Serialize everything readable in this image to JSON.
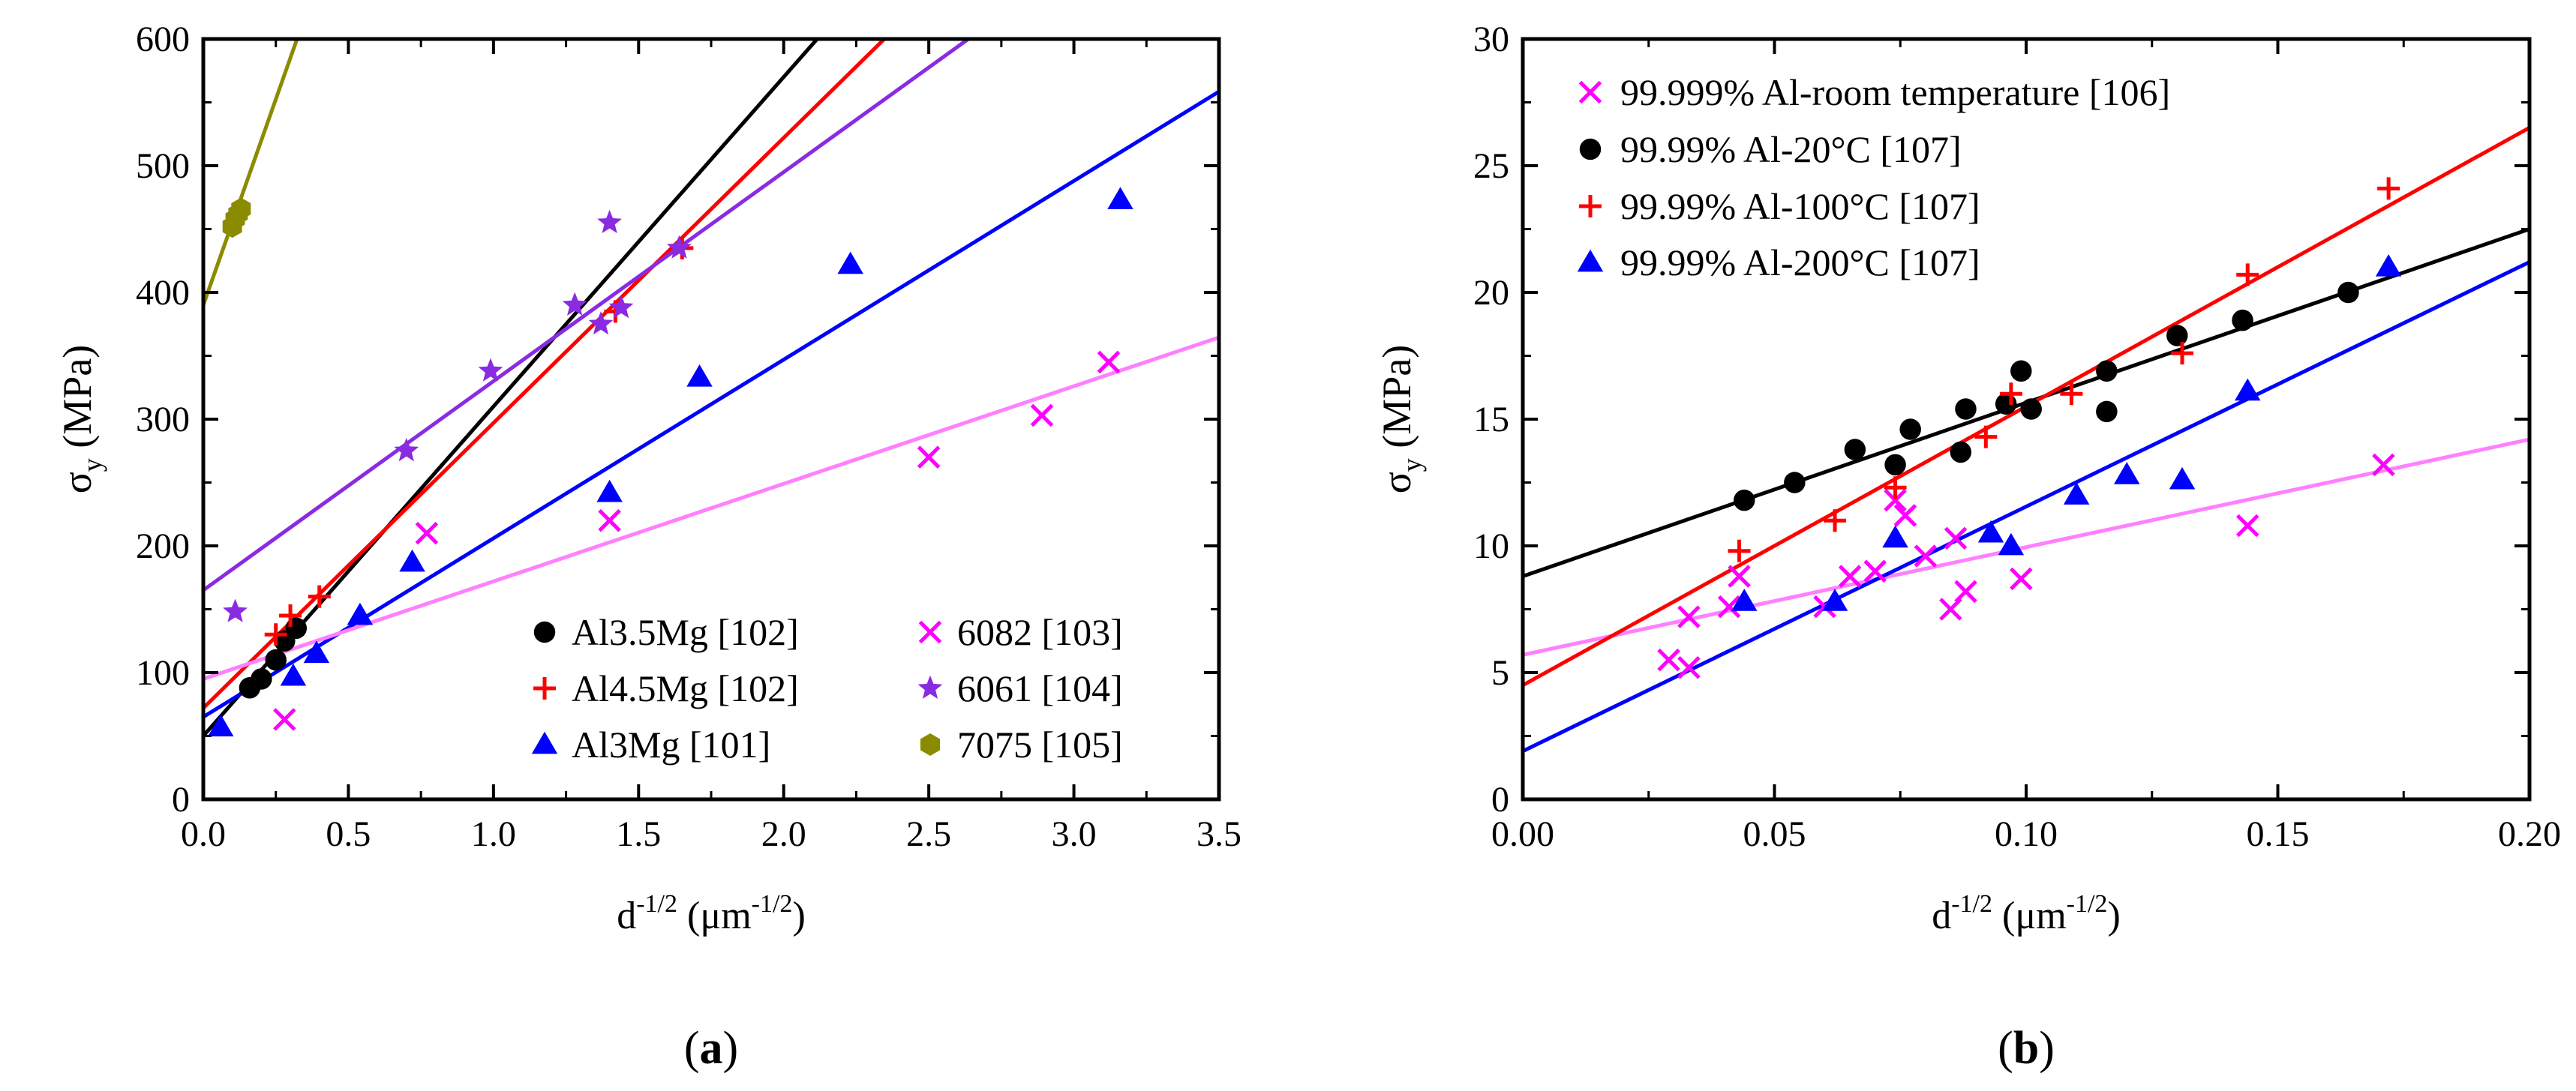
{
  "colors": {
    "black": "#000000",
    "red": "#ff0000",
    "blue": "#0000ff",
    "magenta": "#ff00ff",
    "pink_line": "#ff80ff",
    "purple": "#8a2be2",
    "purple_line": "#8a2be2",
    "olive": "#8b8b00"
  },
  "chart_data": [
    {
      "type": "scatter",
      "panel_label": "(a)",
      "xlabel": "d",
      "xlabel_sup": "-1/2",
      "xlabel_units": "(μm",
      "xlabel_units_sup": "-1/2",
      "xlabel_close": ")",
      "ylabel": "σ",
      "ylabel_sub": "y",
      "ylabel_units": "(MPa)",
      "xlim": [
        0,
        3.5
      ],
      "ylim": [
        0,
        600
      ],
      "xticks": [
        0.0,
        0.5,
        1.0,
        1.5,
        2.0,
        2.5,
        3.0,
        3.5
      ],
      "xtick_labels": [
        "0.0",
        "0.5",
        "1.0",
        "1.5",
        "2.0",
        "2.5",
        "3.0",
        "3.5"
      ],
      "yticks": [
        0,
        100,
        200,
        300,
        400,
        500,
        600
      ],
      "ytick_labels": [
        "0",
        "100",
        "200",
        "300",
        "400",
        "500",
        "600"
      ],
      "legend_position": "bottom-right",
      "series": [
        {
          "name": "Al3.5Mg [102]",
          "marker": "circle",
          "color": "#000000",
          "line_color": "#000000",
          "points": [
            [
              0.16,
              88
            ],
            [
              0.2,
              95
            ],
            [
              0.25,
              110
            ],
            [
              0.28,
              125
            ],
            [
              0.32,
              135
            ]
          ],
          "fit": {
            "intercept": 50,
            "slope": 260
          }
        },
        {
          "name": "Al4.5Mg [102]",
          "marker": "plus",
          "color": "#ff0000",
          "line_color": "#ff0000",
          "points": [
            [
              0.25,
              130
            ],
            [
              0.3,
              145
            ],
            [
              0.4,
              160
            ],
            [
              1.42,
              385
            ],
            [
              1.65,
              435
            ]
          ],
          "fit": {
            "intercept": 72,
            "slope": 225
          }
        },
        {
          "name": "Al3Mg [101]",
          "marker": "triangle",
          "color": "#0000ff",
          "line_color": "#0000ff",
          "points": [
            [
              0.06,
              57
            ],
            [
              0.31,
              97
            ],
            [
              0.39,
              115
            ],
            [
              0.54,
              145
            ],
            [
              0.72,
              187
            ],
            [
              1.4,
              242
            ],
            [
              1.71,
              333
            ],
            [
              2.23,
              422
            ],
            [
              3.16,
              473
            ]
          ],
          "fit": {
            "intercept": 65,
            "slope": 141
          }
        },
        {
          "name": "6082 [103]",
          "marker": "x",
          "color": "#ff00ff",
          "line_color": "#ff80ff",
          "points": [
            [
              0.28,
              63
            ],
            [
              0.77,
              210
            ],
            [
              1.4,
              220
            ],
            [
              2.5,
              270
            ],
            [
              2.89,
              303
            ],
            [
              3.12,
              345
            ]
          ],
          "fit": {
            "intercept": 95,
            "slope": 77
          }
        },
        {
          "name": "6061 [104]",
          "marker": "star",
          "color": "#8a2be2",
          "line_color": "#8a2be2",
          "points": [
            [
              0.11,
              148
            ],
            [
              0.7,
              275
            ],
            [
              0.99,
              338
            ],
            [
              1.28,
              390
            ],
            [
              1.37,
              375
            ],
            [
              1.4,
              455
            ],
            [
              1.44,
              388
            ],
            [
              1.64,
              435
            ]
          ],
          "fit": {
            "intercept": 165,
            "slope": 165
          }
        },
        {
          "name": "7075 [105]",
          "marker": "hexagon",
          "color": "#8b8b00",
          "line_color": "#8b8b00",
          "points": [
            [
              0.1,
              452
            ],
            [
              0.11,
              458
            ],
            [
              0.12,
              462
            ],
            [
              0.13,
              466
            ]
          ],
          "fit": {
            "intercept": 390,
            "slope": 650
          }
        }
      ]
    },
    {
      "type": "scatter",
      "panel_label": "(b)",
      "xlabel": "d",
      "xlabel_sup": "-1/2",
      "xlabel_units": "(μm",
      "xlabel_units_sup": "-1/2",
      "xlabel_close": ")",
      "ylabel": "σ",
      "ylabel_sub": "y",
      "ylabel_units": "(MPa)",
      "xlim": [
        0,
        0.2
      ],
      "ylim": [
        0,
        30
      ],
      "xticks": [
        0.0,
        0.05,
        0.1,
        0.15,
        0.2
      ],
      "xtick_labels": [
        "0.00",
        "0.05",
        "0.10",
        "0.15",
        "0.20"
      ],
      "yticks": [
        0,
        5,
        10,
        15,
        20,
        25,
        30
      ],
      "ytick_labels": [
        "0",
        "5",
        "10",
        "15",
        "20",
        "25",
        "30"
      ],
      "legend_position": "top-left",
      "series": [
        {
          "name": "99.999% Al-room temperature [106]",
          "marker": "x",
          "color": "#ff00ff",
          "line_color": "#ff80ff",
          "points": [
            [
              0.029,
              5.5
            ],
            [
              0.033,
              5.2
            ],
            [
              0.033,
              7.2
            ],
            [
              0.041,
              7.6
            ],
            [
              0.043,
              8.8
            ],
            [
              0.06,
              7.6
            ],
            [
              0.065,
              8.8
            ],
            [
              0.07,
              9.0
            ],
            [
              0.074,
              11.8
            ],
            [
              0.076,
              11.2
            ],
            [
              0.08,
              9.6
            ],
            [
              0.085,
              7.5
            ],
            [
              0.086,
              10.3
            ],
            [
              0.088,
              8.2
            ],
            [
              0.099,
              8.7
            ],
            [
              0.144,
              10.8
            ],
            [
              0.171,
              13.2
            ]
          ],
          "fit": {
            "intercept": 5.7,
            "slope": 42.5
          }
        },
        {
          "name": "99.99% Al-20°C [107]",
          "marker": "circle",
          "color": "#000000",
          "line_color": "#000000",
          "points": [
            [
              0.044,
              11.8
            ],
            [
              0.054,
              12.5
            ],
            [
              0.066,
              13.8
            ],
            [
              0.074,
              13.2
            ],
            [
              0.077,
              14.6
            ],
            [
              0.087,
              13.7
            ],
            [
              0.088,
              15.4
            ],
            [
              0.096,
              15.6
            ],
            [
              0.099,
              16.9
            ],
            [
              0.101,
              15.4
            ],
            [
              0.116,
              16.9
            ],
            [
              0.116,
              15.3
            ],
            [
              0.13,
              18.3
            ],
            [
              0.143,
              18.9
            ],
            [
              0.164,
              20.0
            ]
          ],
          "fit": {
            "intercept": 8.8,
            "slope": 68.5
          }
        },
        {
          "name": "99.99% Al-100°C [107]",
          "marker": "plus",
          "color": "#ff0000",
          "line_color": "#ff0000",
          "points": [
            [
              0.043,
              9.8
            ],
            [
              0.062,
              11.0
            ],
            [
              0.074,
              12.3
            ],
            [
              0.092,
              14.3
            ],
            [
              0.097,
              16.0
            ],
            [
              0.109,
              16.0
            ],
            [
              0.131,
              17.6
            ],
            [
              0.144,
              20.7
            ],
            [
              0.172,
              24.1
            ]
          ],
          "fit": {
            "intercept": 4.5,
            "slope": 110
          }
        },
        {
          "name": "99.99% Al-200°C [107]",
          "marker": "triangle",
          "color": "#0000ff",
          "line_color": "#0000ff",
          "points": [
            [
              0.044,
              7.8
            ],
            [
              0.062,
              7.8
            ],
            [
              0.074,
              10.3
            ],
            [
              0.093,
              10.5
            ],
            [
              0.097,
              10.0
            ],
            [
              0.11,
              12.0
            ],
            [
              0.12,
              12.8
            ],
            [
              0.131,
              12.6
            ],
            [
              0.144,
              16.1
            ],
            [
              0.172,
              21.0
            ]
          ],
          "fit": {
            "intercept": 1.9,
            "slope": 96.5
          }
        }
      ]
    }
  ]
}
